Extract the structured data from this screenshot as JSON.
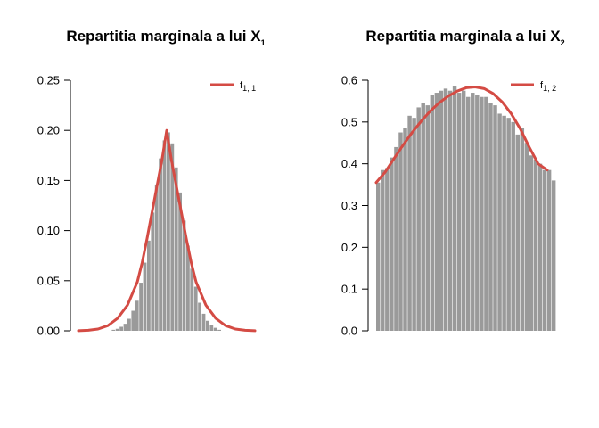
{
  "chart_data": [
    {
      "type": "bar",
      "title": "Repartitia marginala a lui X",
      "title_subscript": "1",
      "ylim": [
        0,
        0.25
      ],
      "y_ticks": [
        0.0,
        0.05,
        0.1,
        0.15,
        0.2,
        0.25
      ],
      "y_tick_labels": [
        "0.00",
        "0.05",
        "0.10",
        "0.15",
        "0.20",
        "0.25"
      ],
      "xlim": [
        -9,
        9
      ],
      "bin_width": 0.4,
      "histogram": {
        "bin_starts": [
          -5.6,
          -5.2,
          -4.8,
          -4.4,
          -4.0,
          -3.6,
          -3.2,
          -2.8,
          -2.4,
          -2.0,
          -1.6,
          -1.2,
          -0.8,
          -0.4,
          0.0,
          0.4,
          0.8,
          1.2,
          1.6,
          2.0,
          2.4,
          2.8,
          3.2,
          3.6,
          4.0,
          4.4,
          4.8,
          5.2
        ],
        "values": [
          0.001,
          0.002,
          0.004,
          0.007,
          0.012,
          0.02,
          0.03,
          0.048,
          0.068,
          0.09,
          0.118,
          0.146,
          0.172,
          0.19,
          0.198,
          0.187,
          0.163,
          0.138,
          0.11,
          0.085,
          0.062,
          0.044,
          0.028,
          0.017,
          0.01,
          0.006,
          0.003,
          0.001
        ],
        "color": "#9a9a9a"
      },
      "curve": {
        "name": "f",
        "name_subscript": "1, 1",
        "x": [
          -9,
          -8,
          -7,
          -6,
          -5,
          -4,
          -3,
          -2.5,
          -2,
          -1.5,
          -1,
          -0.5,
          0,
          0.5,
          1,
          1.5,
          2,
          2.5,
          3,
          4,
          5,
          6,
          7,
          8,
          9
        ],
        "y": [
          0.0001,
          0.0006,
          0.0018,
          0.0052,
          0.0125,
          0.0256,
          0.0486,
          0.0681,
          0.0921,
          0.118,
          0.1438,
          0.1694,
          0.2,
          0.1694,
          0.1438,
          0.118,
          0.0921,
          0.0681,
          0.0486,
          0.0256,
          0.0125,
          0.0052,
          0.0018,
          0.0006,
          0.0001
        ],
        "color": "#d44b44"
      },
      "legend_position": "top-right"
    },
    {
      "type": "bar",
      "title": "Repartitia marginala a lui X",
      "title_subscript": "2",
      "ylim": [
        0,
        0.6
      ],
      "y_ticks": [
        0.0,
        0.1,
        0.2,
        0.3,
        0.4,
        0.5,
        0.6
      ],
      "y_tick_labels": [
        "0.0",
        "0.1",
        "0.2",
        "0.3",
        "0.4",
        "0.5",
        "0.6"
      ],
      "xlim": [
        0,
        1
      ],
      "bin_width": 0.025,
      "histogram": {
        "bin_starts": [
          0,
          0.025,
          0.05,
          0.075,
          0.1,
          0.125,
          0.15,
          0.175,
          0.2,
          0.225,
          0.25,
          0.275,
          0.3,
          0.325,
          0.35,
          0.375,
          0.4,
          0.425,
          0.45,
          0.475,
          0.5,
          0.525,
          0.55,
          0.575,
          0.6,
          0.625,
          0.65,
          0.675,
          0.7,
          0.725,
          0.75,
          0.775,
          0.8,
          0.825,
          0.85,
          0.875,
          0.9,
          0.925,
          0.95,
          0.975
        ],
        "values": [
          0.355,
          0.385,
          0.39,
          0.415,
          0.44,
          0.475,
          0.485,
          0.515,
          0.51,
          0.535,
          0.545,
          0.54,
          0.565,
          0.57,
          0.575,
          0.58,
          0.575,
          0.585,
          0.57,
          0.575,
          0.56,
          0.57,
          0.565,
          0.56,
          0.56,
          0.545,
          0.54,
          0.52,
          0.515,
          0.51,
          0.5,
          0.47,
          0.485,
          0.45,
          0.42,
          0.41,
          0.4,
          0.385,
          0.385,
          0.36
        ],
        "color": "#9a9a9a"
      },
      "curve": {
        "name": "f",
        "name_subscript": "1, 2",
        "x": [
          0,
          0.05,
          0.1,
          0.15,
          0.2,
          0.25,
          0.3,
          0.35,
          0.4,
          0.45,
          0.5,
          0.55,
          0.6,
          0.65,
          0.7,
          0.75,
          0.8,
          0.85,
          0.9,
          0.95
        ],
        "y": [
          0.355,
          0.38,
          0.413,
          0.445,
          0.475,
          0.502,
          0.526,
          0.546,
          0.562,
          0.574,
          0.582,
          0.584,
          0.58,
          0.568,
          0.548,
          0.52,
          0.484,
          0.44,
          0.4,
          0.385
        ],
        "color": "#d44b44"
      },
      "legend_position": "top-right"
    }
  ]
}
